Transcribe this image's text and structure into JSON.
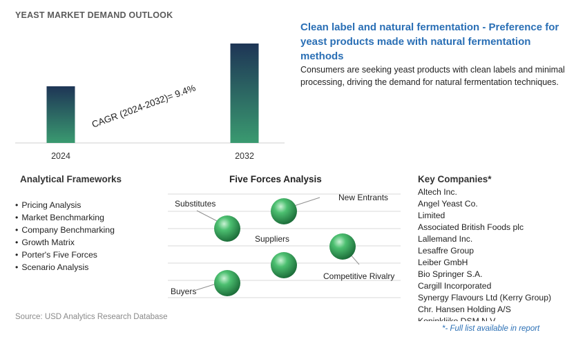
{
  "chart_title": "YEAST MARKET DEMAND OUTLOOK",
  "headline": "Clean label and natural fermentation - Preference for yeast products made with natural fermentation methods",
  "description": "Consumers are seeking yeast products with clean labels and minimal processing, driving the demand for natural fermentation techniques.",
  "chart_data": {
    "type": "bar",
    "categories": [
      "2024",
      "2032"
    ],
    "values": [
      0.57,
      1.0
    ],
    "annotation": "CAGR (2024-2032)=   9.4%",
    "colors": {
      "bar_top": "#1e3556",
      "bar_bottom": "#3a9a70"
    }
  },
  "analytical_frameworks": {
    "title": "Analytical Frameworks",
    "items": [
      "Pricing Analysis",
      "Market Benchmarking",
      "Company Benchmarking",
      "Growth Matrix",
      "Porter's Five Forces",
      "Scenario Analysis"
    ]
  },
  "five_forces": {
    "title": "Five Forces Analysis",
    "labels": {
      "substitutes": "Substitutes",
      "new_entrants": "New Entrants",
      "suppliers": "Suppliers",
      "competitive_rivalry": "Competitive Rivalry",
      "buyers": "Buyers"
    },
    "sphere_color": "#2e9a55"
  },
  "key_companies": {
    "title": "Key Companies*",
    "items": [
      "Altech Inc.",
      "Angel Yeast Co.",
      "Limited",
      "Associated British Foods plc",
      "Lallemand Inc.",
      "Lesaffre Group",
      "Leiber GmbH",
      "Bio Springer S.A.",
      "Cargill Incorporated",
      "Synergy Flavours Ltd (Kerry Group)",
      "Chr. Hansen Holding A/S",
      "Koninklijke DSM N.V."
    ],
    "footnote": "*- Full list available in report"
  },
  "source": "Source: USD Analytics Research Database"
}
